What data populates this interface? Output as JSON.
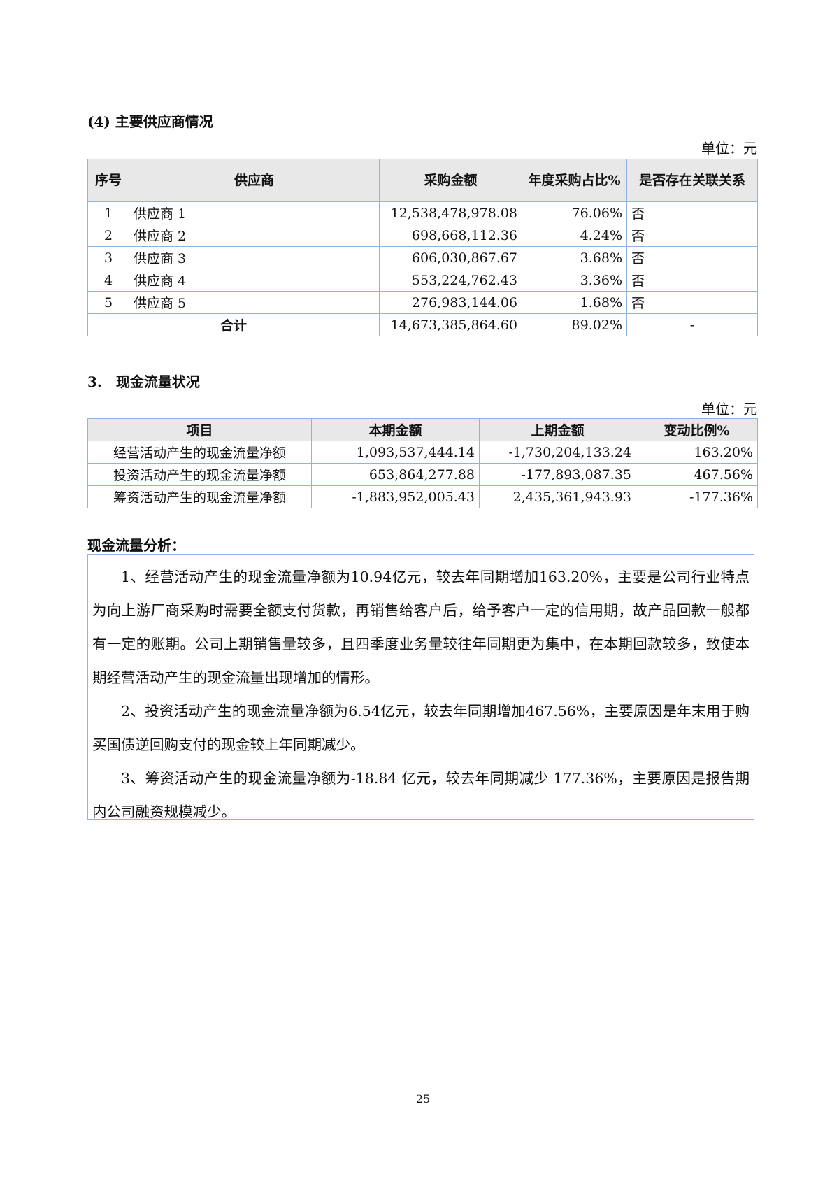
{
  "suppliers": {
    "title": "(4) 主要供应商情况",
    "unit": "单位：元",
    "headers": [
      "序号",
      "供应商",
      "采购金额",
      "年度采购占比%",
      "是否存在关联关系"
    ],
    "rows": [
      {
        "no": "1",
        "name": "供应商 1",
        "amount": "12,538,478,978.08",
        "pct": "76.06%",
        "related": "否"
      },
      {
        "no": "2",
        "name": "供应商 2",
        "amount": "698,668,112.36",
        "pct": "4.24%",
        "related": "否"
      },
      {
        "no": "3",
        "name": "供应商 3",
        "amount": "606,030,867.67",
        "pct": "3.68%",
        "related": "否"
      },
      {
        "no": "4",
        "name": "供应商 4",
        "amount": "553,224,762.43",
        "pct": "3.36%",
        "related": "否"
      },
      {
        "no": "5",
        "name": "供应商 5",
        "amount": "276,983,144.06",
        "pct": "1.68%",
        "related": "否"
      }
    ],
    "total": {
      "label": "合计",
      "amount": "14,673,385,864.60",
      "pct": "89.02%",
      "related": "-"
    }
  },
  "cashflow": {
    "title": "3.　现金流量状况",
    "unit": "单位：元",
    "headers": [
      "项目",
      "本期金额",
      "上期金额",
      "变动比例%"
    ],
    "rows": [
      {
        "item": "经营活动产生的现金流量净额",
        "current": "1,093,537,444.14",
        "previous": "-1,730,204,133.24",
        "change": "163.20%"
      },
      {
        "item": "投资活动产生的现金流量净额",
        "current": "653,864,277.88",
        "previous": "-177,893,087.35",
        "change": "467.56%"
      },
      {
        "item": "筹资活动产生的现金流量净额",
        "current": "-1,883,952,005.43",
        "previous": "2,435,361,943.93",
        "change": "-177.36%"
      }
    ]
  },
  "analysis": {
    "title": "现金流量分析：",
    "paragraphs": [
      "1、经营活动产生的现金流量净额为10.94亿元，较去年同期增加163.20%，主要是公司行业特点为向上游厂商采购时需要全额支付货款，再销售给客户后，给予客户一定的信用期，故产品回款一般都有一定的账期。公司上期销售量较多，且四季度业务量较往年同期更为集中，在本期回款较多，致使本期经营活动产生的现金流量出现增加的情形。",
      "2、投资活动产生的现金流量净额为6.54亿元，较去年同期增加467.56%，主要原因是年末用于购买国债逆回购支付的现金较上年同期减少。",
      "3、筹资活动产生的现金流量净额为-18.84 亿元，较去年同期减少 177.36%，主要原因是报告期内公司融资规模减少。"
    ]
  },
  "page_number": "25",
  "colors": {
    "border": "#8db3e2",
    "header_bg": "#e8e8e8"
  }
}
